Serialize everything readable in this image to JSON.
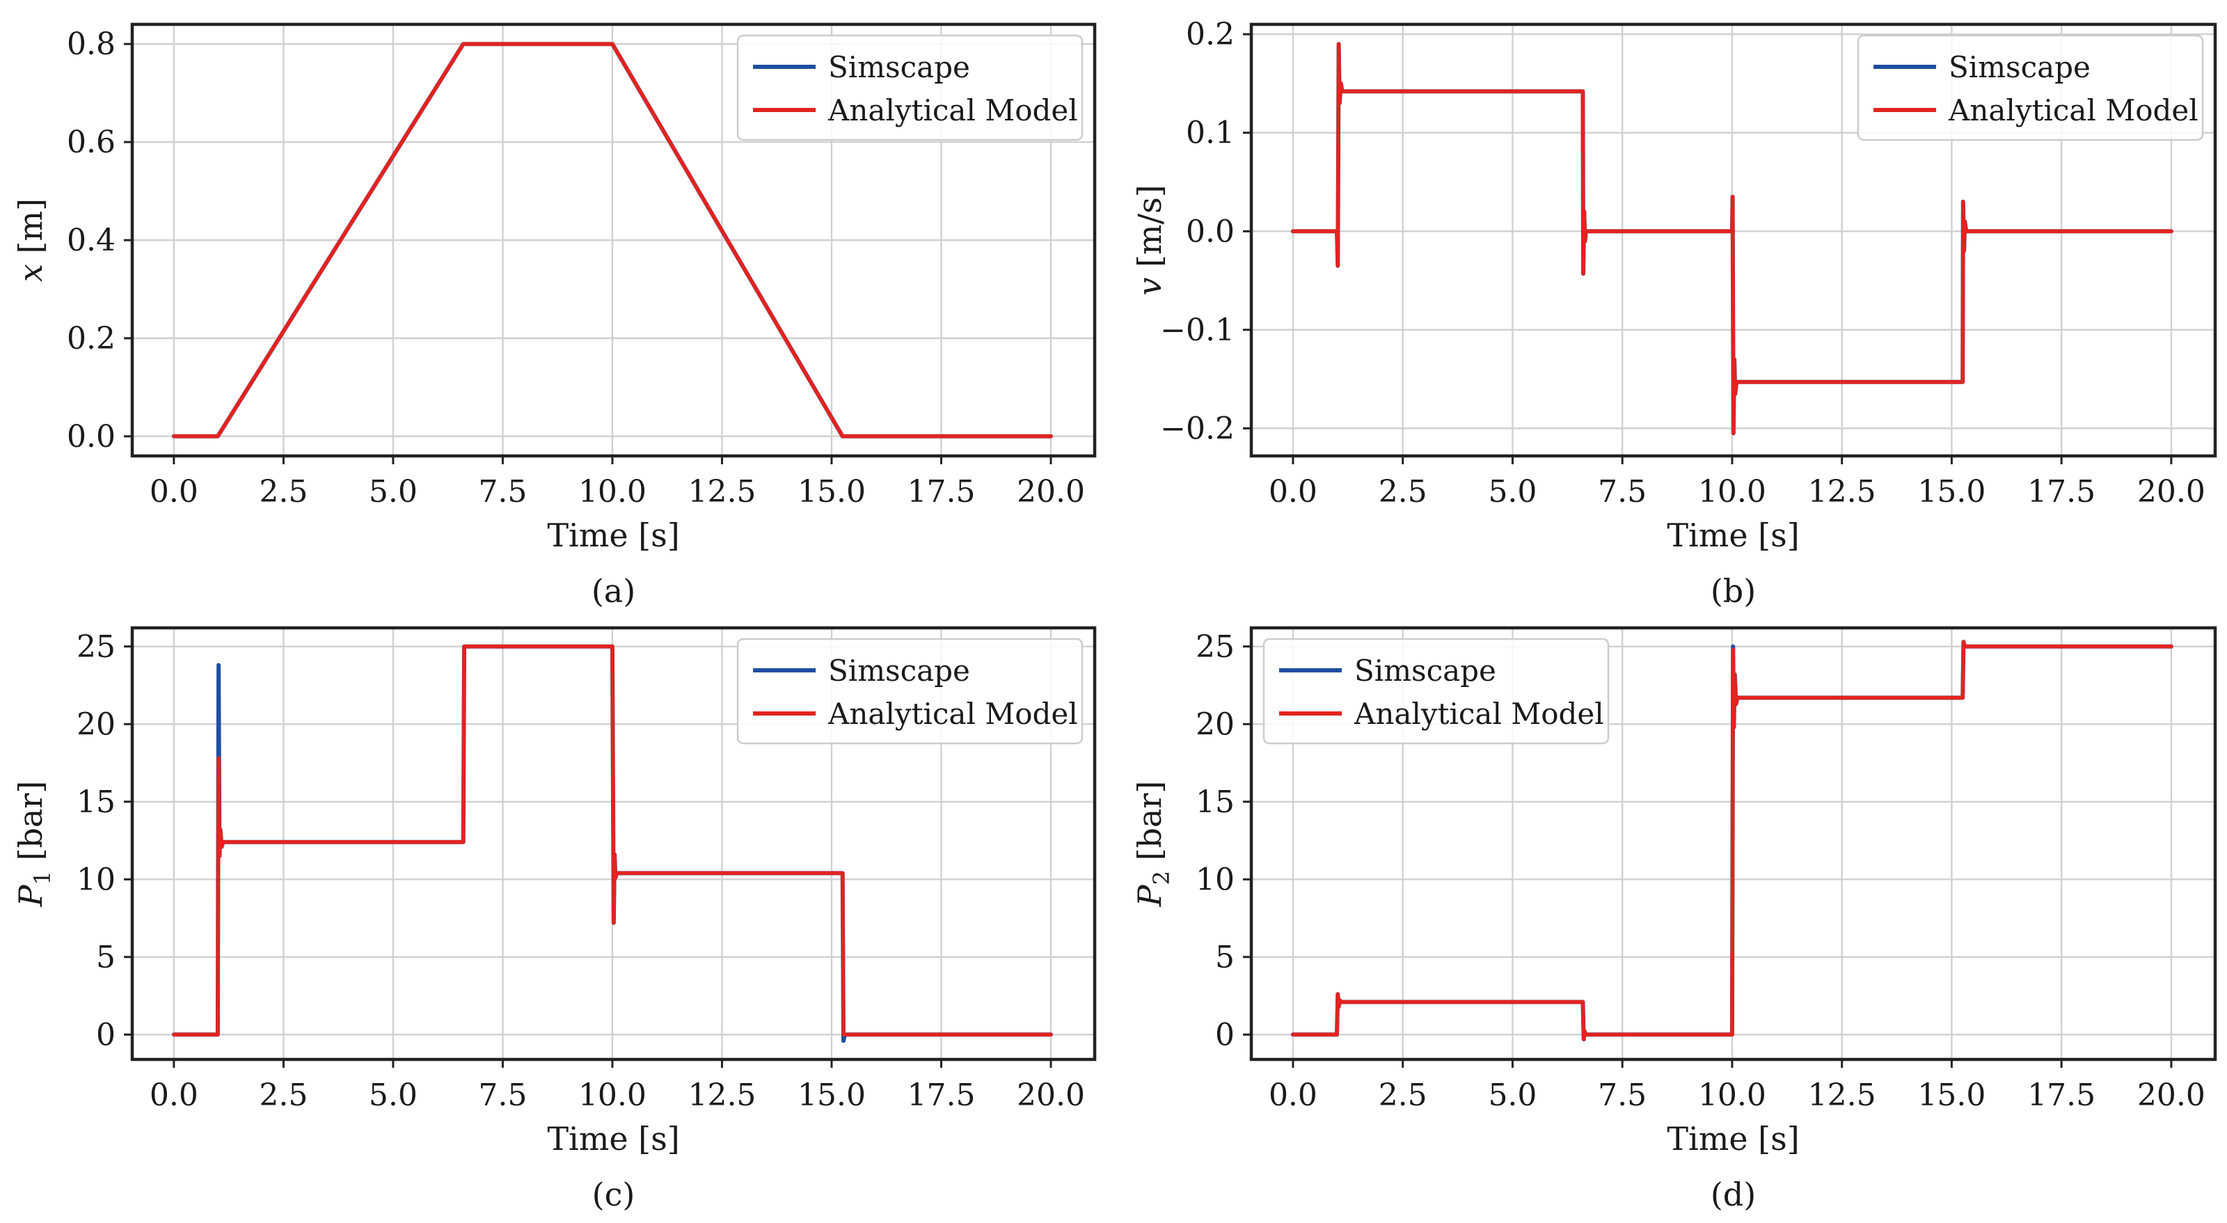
{
  "chart_data": [
    {
      "panel": "a",
      "type": "line",
      "caption": "(a)",
      "xlabel": "Time [s]",
      "ylabel": "x [m]",
      "ylabel_var": "x",
      "ylabel_sub": "",
      "ylabel_unit": "[m]",
      "xlim": [
        -0.95,
        21.0
      ],
      "ylim": [
        -0.04,
        0.84
      ],
      "xticks": [
        0.0,
        2.5,
        5.0,
        7.5,
        10.0,
        12.5,
        15.0,
        17.5,
        20.0
      ],
      "xtick_labels": [
        "0.0",
        "2.5",
        "5.0",
        "7.5",
        "10.0",
        "12.5",
        "15.0",
        "17.5",
        "20.0"
      ],
      "yticks": [
        0.0,
        0.2,
        0.4,
        0.6,
        0.8
      ],
      "ytick_labels": [
        "0.0",
        "0.2",
        "0.4",
        "0.6",
        "0.8"
      ],
      "grid": true,
      "legend_loc": "top-right",
      "series": [
        {
          "name": "Simscape",
          "color": "#1f4ea1",
          "x": [
            0,
            1.0,
            6.6,
            10.0,
            15.25,
            20
          ],
          "y": [
            0,
            0,
            0.8,
            0.8,
            0,
            0
          ]
        },
        {
          "name": "Analytical Model",
          "color": "#e3231f",
          "x": [
            0,
            1.0,
            6.6,
            10.0,
            15.25,
            20
          ],
          "y": [
            0,
            0,
            0.8,
            0.8,
            0,
            0
          ]
        }
      ]
    },
    {
      "panel": "b",
      "type": "line",
      "caption": "(b)",
      "xlabel": "Time [s]",
      "ylabel": "v [m/s]",
      "ylabel_var": "v",
      "ylabel_sub": "",
      "ylabel_unit": "[m/s]",
      "xlim": [
        -0.95,
        21.0
      ],
      "ylim": [
        -0.228,
        0.21
      ],
      "xticks": [
        0.0,
        2.5,
        5.0,
        7.5,
        10.0,
        12.5,
        15.0,
        17.5,
        20.0
      ],
      "xtick_labels": [
        "0.0",
        "2.5",
        "5.0",
        "7.5",
        "10.0",
        "12.5",
        "15.0",
        "17.5",
        "20.0"
      ],
      "yticks": [
        -0.2,
        -0.1,
        0.0,
        0.1,
        0.2
      ],
      "ytick_labels": [
        "−0.2",
        "−0.1",
        "0.0",
        "0.1",
        "0.2"
      ],
      "grid": true,
      "legend_loc": "top-right",
      "series": [
        {
          "name": "Simscape",
          "color": "#1f4ea1",
          "x": [
            0,
            1.0,
            1.02,
            1.04,
            1.06,
            1.09,
            1.12,
            6.6,
            6.61,
            6.63,
            6.65,
            6.67,
            10.0,
            10.01,
            10.03,
            10.05,
            10.07,
            10.1,
            15.25,
            15.26,
            15.28,
            15.3,
            15.33,
            20
          ],
          "y": [
            0,
            0,
            -0.035,
            0.19,
            0.13,
            0.15,
            0.142,
            0.142,
            -0.043,
            0.02,
            -0.01,
            0,
            0,
            0.035,
            -0.205,
            -0.13,
            -0.165,
            -0.153,
            -0.153,
            0.03,
            -0.02,
            0.01,
            0,
            0
          ]
        },
        {
          "name": "Analytical Model",
          "color": "#e3231f",
          "x": [
            0,
            1.0,
            1.02,
            1.04,
            1.06,
            1.09,
            1.12,
            6.6,
            6.61,
            6.63,
            6.65,
            6.67,
            10.0,
            10.01,
            10.03,
            10.05,
            10.07,
            10.1,
            15.25,
            15.26,
            15.28,
            15.3,
            15.33,
            20
          ],
          "y": [
            0,
            0,
            -0.035,
            0.19,
            0.13,
            0.15,
            0.142,
            0.142,
            -0.043,
            0.02,
            -0.01,
            0,
            0,
            0.035,
            -0.205,
            -0.13,
            -0.165,
            -0.153,
            -0.153,
            0.03,
            -0.02,
            0.01,
            0,
            0
          ]
        }
      ]
    },
    {
      "panel": "c",
      "type": "line",
      "caption": "(c)",
      "xlabel": "Time [s]",
      "ylabel": "P1 [bar]",
      "ylabel_var": "P",
      "ylabel_sub": "1",
      "ylabel_unit": "[bar]",
      "xlim": [
        -0.95,
        21.0
      ],
      "ylim": [
        -1.6,
        26.2
      ],
      "xticks": [
        0.0,
        2.5,
        5.0,
        7.5,
        10.0,
        12.5,
        15.0,
        17.5,
        20.0
      ],
      "xtick_labels": [
        "0.0",
        "2.5",
        "5.0",
        "7.5",
        "10.0",
        "12.5",
        "15.0",
        "17.5",
        "20.0"
      ],
      "yticks": [
        0,
        5,
        10,
        15,
        20,
        25
      ],
      "ytick_labels": [
        "0",
        "5",
        "10",
        "15",
        "20",
        "25"
      ],
      "grid": true,
      "legend_loc": "top-right",
      "series": [
        {
          "name": "Simscape",
          "color": "#1f4ea1",
          "x": [
            0,
            1.0,
            1.02,
            1.04,
            1.06,
            1.09,
            1.12,
            6.6,
            6.62,
            10.0,
            10.03,
            10.05,
            10.07,
            10.1,
            15.25,
            15.27,
            15.3,
            20
          ],
          "y": [
            0,
            0,
            23.8,
            11.5,
            13.2,
            12.1,
            12.4,
            12.4,
            25,
            25,
            7.2,
            11.6,
            10.1,
            10.4,
            10.4,
            -0.4,
            0,
            0
          ]
        },
        {
          "name": "Analytical Model",
          "color": "#e3231f",
          "x": [
            0,
            1.0,
            1.02,
            1.04,
            1.06,
            1.09,
            1.12,
            6.6,
            6.62,
            10.0,
            10.03,
            10.05,
            10.07,
            10.1,
            15.25,
            15.27,
            15.3,
            20
          ],
          "y": [
            0,
            0,
            17.8,
            11.5,
            13.2,
            12.1,
            12.4,
            12.4,
            25,
            25,
            7.2,
            11.6,
            10.1,
            10.4,
            10.4,
            0,
            0,
            0
          ]
        }
      ]
    },
    {
      "panel": "d",
      "type": "line",
      "caption": "(d)",
      "xlabel": "Time [s]",
      "ylabel": "P2 [bar]",
      "ylabel_var": "P",
      "ylabel_sub": "2",
      "ylabel_unit": "[bar]",
      "xlim": [
        -0.95,
        21.0
      ],
      "ylim": [
        -1.6,
        26.2
      ],
      "xticks": [
        0.0,
        2.5,
        5.0,
        7.5,
        10.0,
        12.5,
        15.0,
        17.5,
        20.0
      ],
      "xtick_labels": [
        "0.0",
        "2.5",
        "5.0",
        "7.5",
        "10.0",
        "12.5",
        "15.0",
        "17.5",
        "20.0"
      ],
      "yticks": [
        0,
        5,
        10,
        15,
        20,
        25
      ],
      "ytick_labels": [
        "0",
        "5",
        "10",
        "15",
        "20",
        "25"
      ],
      "grid": true,
      "legend_loc": "top-left",
      "series": [
        {
          "name": "Simscape",
          "color": "#1f4ea1",
          "x": [
            0,
            1.0,
            1.02,
            1.04,
            1.07,
            1.1,
            6.6,
            6.62,
            6.64,
            6.67,
            10.0,
            10.02,
            10.04,
            10.06,
            10.09,
            10.12,
            15.25,
            15.27,
            15.3,
            20
          ],
          "y": [
            0,
            0,
            2.6,
            1.8,
            2.2,
            2.1,
            2.1,
            -0.3,
            0.2,
            0,
            0,
            25,
            19.8,
            23.2,
            21.3,
            21.7,
            21.7,
            25.3,
            25,
            25
          ]
        },
        {
          "name": "Analytical Model",
          "color": "#e3231f",
          "x": [
            0,
            1.0,
            1.02,
            1.04,
            1.07,
            1.1,
            6.6,
            6.62,
            6.64,
            6.67,
            10.0,
            10.02,
            10.04,
            10.06,
            10.09,
            10.12,
            15.25,
            15.27,
            15.3,
            20
          ],
          "y": [
            0,
            0,
            2.6,
            1.8,
            2.2,
            2.1,
            2.1,
            -0.3,
            0.2,
            0,
            0,
            24.8,
            19.8,
            23.2,
            21.3,
            21.7,
            21.7,
            25.3,
            25,
            25
          ]
        }
      ]
    }
  ]
}
